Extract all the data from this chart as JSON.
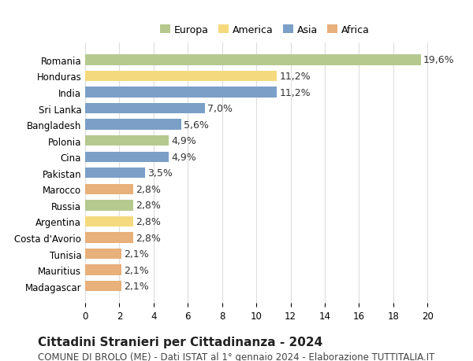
{
  "countries": [
    "Romania",
    "Honduras",
    "India",
    "Sri Lanka",
    "Bangladesh",
    "Polonia",
    "Cina",
    "Pakistan",
    "Marocco",
    "Russia",
    "Argentina",
    "Costa d'Avorio",
    "Tunisia",
    "Mauritius",
    "Madagascar"
  ],
  "values": [
    19.6,
    11.2,
    11.2,
    7.0,
    5.6,
    4.9,
    4.9,
    3.5,
    2.8,
    2.8,
    2.8,
    2.8,
    2.1,
    2.1,
    2.1
  ],
  "labels": [
    "19,6%",
    "11,2%",
    "11,2%",
    "7,0%",
    "5,6%",
    "4,9%",
    "4,9%",
    "3,5%",
    "2,8%",
    "2,8%",
    "2,8%",
    "2,8%",
    "2,1%",
    "2,1%",
    "2,1%"
  ],
  "continents": [
    "Europa",
    "America",
    "Asia",
    "Asia",
    "Asia",
    "Europa",
    "Asia",
    "Asia",
    "Africa",
    "Europa",
    "America",
    "Africa",
    "Africa",
    "Africa",
    "Africa"
  ],
  "continent_colors": {
    "Europa": "#b5c98e",
    "America": "#f5d97e",
    "Asia": "#7b9fc7",
    "Africa": "#e8b07a"
  },
  "legend_order": [
    "Europa",
    "America",
    "Asia",
    "Africa"
  ],
  "legend_colors": [
    "#b5c98e",
    "#f5d97e",
    "#7b9fc7",
    "#e8b07a"
  ],
  "xlim": [
    0,
    21
  ],
  "xticks": [
    0,
    2,
    4,
    6,
    8,
    10,
    12,
    14,
    16,
    18,
    20
  ],
  "title": "Cittadini Stranieri per Cittadinanza - 2024",
  "subtitle": "COMUNE DI BROLO (ME) - Dati ISTAT al 1° gennaio 2024 - Elaborazione TUTTITALIA.IT",
  "background_color": "#ffffff",
  "grid_color": "#dddddd",
  "bar_height": 0.65,
  "label_fontsize": 9,
  "title_fontsize": 11,
  "subtitle_fontsize": 8.5,
  "tick_fontsize": 8.5,
  "country_fontsize": 8.5
}
